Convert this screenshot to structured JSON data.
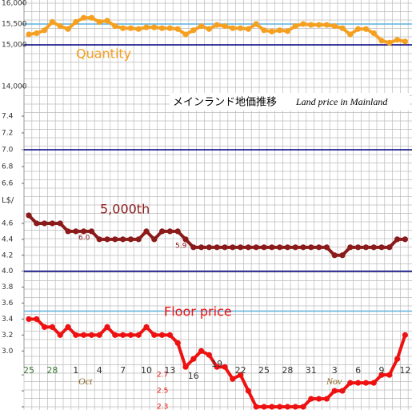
{
  "chart_data": {
    "type": "line",
    "title": "メインランド地価推移",
    "subtitle": "Land price in Mainland",
    "unit_label": "L$/",
    "categories": [
      "25",
      null,
      null,
      "28",
      null,
      null,
      "1",
      null,
      null,
      "4",
      null,
      null,
      "7",
      null,
      null,
      "10",
      null,
      null,
      "13",
      null,
      null,
      "16",
      null,
      null,
      "19",
      null,
      null,
      "22",
      null,
      null,
      "25",
      null,
      null,
      "28",
      null,
      null,
      "31",
      null,
      null,
      "3",
      null,
      null,
      "6",
      null,
      null,
      "9",
      null,
      null,
      "12"
    ],
    "month_labels": [
      "Oct",
      "Nov"
    ],
    "annotations": [
      "6.0",
      "5.9"
    ],
    "panels": [
      {
        "ylim": [
          14000,
          16000
        ],
        "yticks": [
          {
            "value": 14000,
            "label": "14,000"
          },
          {
            "value": 15000,
            "label": "15,000"
          },
          {
            "value": 15500,
            "label": "15,500"
          },
          {
            "value": 16000,
            "label": "16,000"
          }
        ],
        "reference_lines": [
          {
            "value": 15000,
            "color": "#000080"
          },
          {
            "value": 15500,
            "color": "#5fb0e0"
          }
        ],
        "series": [
          {
            "name": "Quantity",
            "color": "#f5a020",
            "values": [
              15250,
              15280,
              15350,
              15550,
              15450,
              15380,
              15550,
              15650,
              15650,
              15550,
              15580,
              15450,
              15400,
              15400,
              15380,
              15420,
              15420,
              15400,
              15400,
              15380,
              15250,
              15350,
              15450,
              15380,
              15480,
              15450,
              15400,
              15400,
              15380,
              15500,
              15350,
              15320,
              15350,
              15330,
              15450,
              15500,
              15480,
              15480,
              15480,
              15450,
              15400,
              15250,
              15380,
              15380,
              15280,
              15100,
              15050,
              15120,
              15080
            ]
          }
        ]
      },
      {
        "ylim": [
          6.5,
          7.5
        ],
        "yticks": [
          6.6,
          6.8,
          {
            "value": 7,
            "label": "7.0"
          },
          7.2,
          7.4
        ],
        "reference_lines": [
          {
            "value": 7,
            "color": "#000080"
          }
        ],
        "series": []
      },
      {
        "ylim": [
          2.3,
          4.75
        ],
        "yticks": [
          2.3,
          2.5,
          2.7,
          {
            "value": 3,
            "label": "3.0"
          },
          3.2,
          3.4,
          3.6,
          3.8,
          {
            "value": 4,
            "label": "4.0"
          },
          4.2,
          4.4,
          4.6
        ],
        "reference_lines": [
          {
            "value": 4,
            "color": "#000080"
          },
          {
            "value": 3.5,
            "color": "#5fb0e0"
          }
        ],
        "series": [
          {
            "name": "5,000th",
            "color": "#8b1a1a",
            "values": [
              4.7,
              4.6,
              4.6,
              4.6,
              4.6,
              4.5,
              4.5,
              4.5,
              4.5,
              4.4,
              4.4,
              4.4,
              4.4,
              4.4,
              4.4,
              4.5,
              4.4,
              4.5,
              4.5,
              4.5,
              4.4,
              4.3,
              4.3,
              4.3,
              4.3,
              4.3,
              4.3,
              4.3,
              4.3,
              4.3,
              4.3,
              4.3,
              4.3,
              4.3,
              4.3,
              4.3,
              4.3,
              4.3,
              4.3,
              4.2,
              4.2,
              4.3,
              4.3,
              4.3,
              4.3,
              4.3,
              4.3,
              4.4,
              4.4
            ]
          },
          {
            "name": "Floor price",
            "color": "#ee1111",
            "values": [
              3.4,
              3.4,
              3.3,
              3.3,
              3.2,
              3.3,
              3.2,
              3.2,
              3.2,
              3.2,
              3.3,
              3.2,
              3.2,
              3.2,
              3.2,
              3.3,
              3.2,
              3.2,
              3.2,
              3.1,
              2.8,
              2.9,
              3.0,
              2.95,
              2.8,
              2.8,
              2.65,
              2.7,
              2.5,
              2.3,
              2.3,
              2.3,
              2.3,
              2.3,
              2.3,
              2.3,
              2.4,
              2.4,
              2.4,
              2.5,
              2.5,
              2.6,
              2.6,
              2.6,
              2.6,
              2.7,
              2.7,
              2.9,
              3.2
            ]
          }
        ]
      }
    ]
  }
}
